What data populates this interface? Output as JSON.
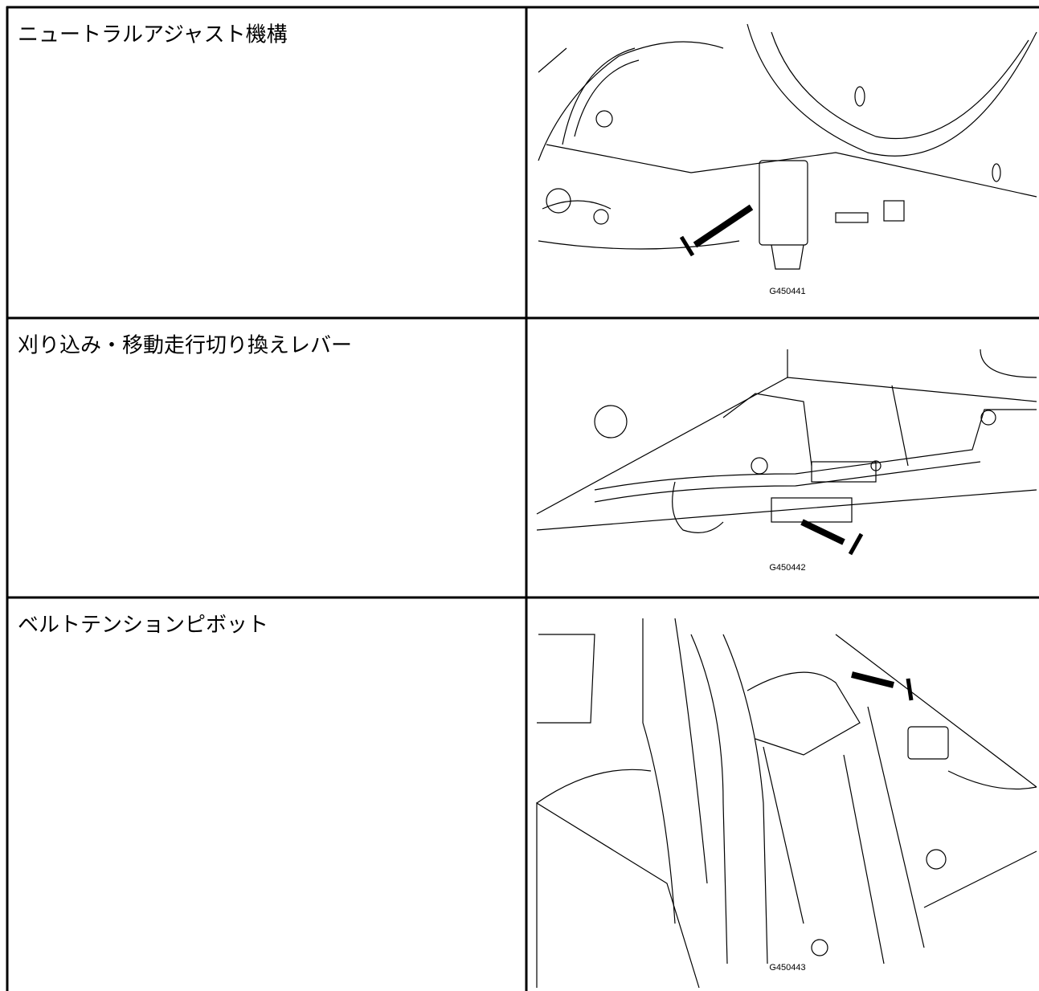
{
  "table": {
    "rows": [
      {
        "label": "ニュートラルアジャスト機構",
        "figure": "G450441"
      },
      {
        "label": "刈り込み・移動走行切り換えレバー",
        "figure": "G450442"
      },
      {
        "label": "ベルトテンションピボット",
        "figure": "G450443"
      }
    ]
  }
}
